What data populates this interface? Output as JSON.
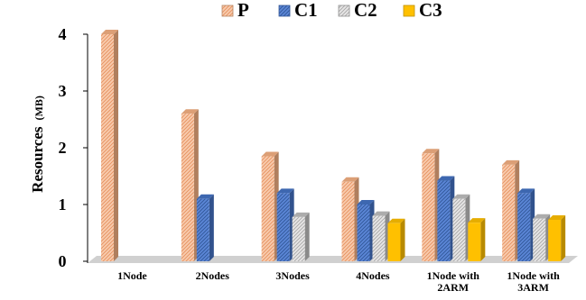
{
  "chart_data": {
    "type": "bar",
    "title": "",
    "xlabel": "",
    "ylabel": "Resources",
    "ylabel_unit": "(MB)",
    "ylim": [
      0,
      4
    ],
    "yticks": [
      "0",
      "1",
      "2",
      "3",
      "4"
    ],
    "grid": false,
    "legend_position": "top",
    "categories": [
      [
        "1Node"
      ],
      [
        "2Nodes"
      ],
      [
        "3Nodes"
      ],
      [
        "4Nodes"
      ],
      [
        "1Node with",
        "2ARM"
      ],
      [
        "1Node with",
        "3ARM"
      ]
    ],
    "series": [
      {
        "name": "P",
        "color": "#f4b183",
        "pattern": "diag",
        "values": [
          4.0,
          2.6,
          1.85,
          1.4,
          1.9,
          1.7
        ]
      },
      {
        "name": "C1",
        "color": "#4472c4",
        "pattern": "diag",
        "values": [
          null,
          1.1,
          1.2,
          1.0,
          1.42,
          1.2
        ]
      },
      {
        "name": "C2",
        "color": "#bfbfbf",
        "pattern": "diag",
        "values": [
          null,
          null,
          0.78,
          0.8,
          1.1,
          0.75
        ]
      },
      {
        "name": "C3",
        "color": "#ffc000",
        "pattern": "solid",
        "values": [
          null,
          null,
          null,
          0.67,
          0.68,
          0.73
        ]
      }
    ]
  }
}
